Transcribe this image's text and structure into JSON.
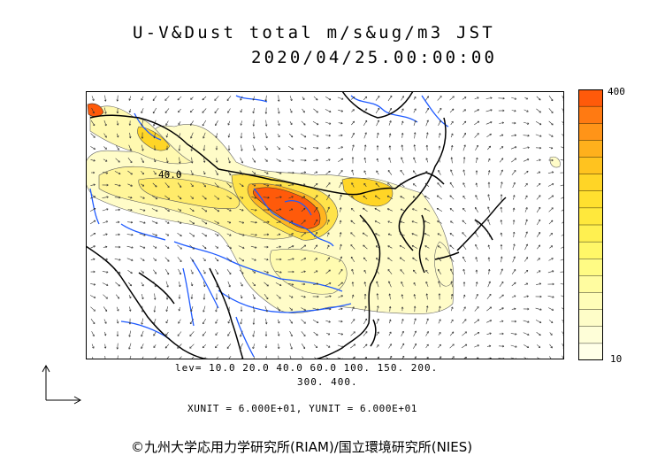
{
  "title": {
    "line1": "U-V&Dust total m/s&ug/m3 JST",
    "line2": "2020/04/25.00:00:00"
  },
  "colorbar": {
    "max_label": "400",
    "min_label": "10",
    "colors": [
      "#ff5a0a",
      "#ff7a12",
      "#ff9418",
      "#ffb01c",
      "#ffc31f",
      "#ffd526",
      "#ffe02f",
      "#ffe83c",
      "#fff050",
      "#fff768",
      "#fffb84",
      "#fffca0",
      "#fffdb8",
      "#fefdc8",
      "#fefed8",
      "#ffffe8"
    ]
  },
  "levels": {
    "line1": "lev= 10.0 20.0 40.0 60.0 100. 150. 200.",
    "line2": "300. 400."
  },
  "contour_label": "40.0",
  "unit_text": "XUNIT = 6.000E+01, YUNIT = 6.000E+01",
  "copyright": "©九州大学応用力学研究所(RIAM)/国立環境研究所(NIES)"
}
